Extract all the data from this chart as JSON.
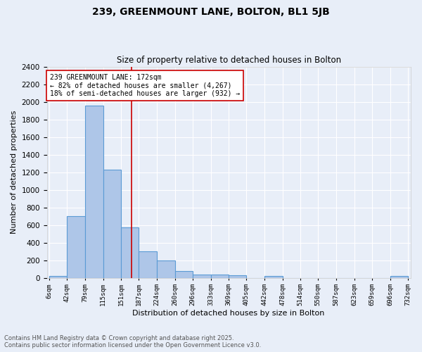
{
  "title": "239, GREENMOUNT LANE, BOLTON, BL1 5JB",
  "subtitle": "Size of property relative to detached houses in Bolton",
  "xlabel": "Distribution of detached houses by size in Bolton",
  "ylabel": "Number of detached properties",
  "bar_edges": [
    6,
    42,
    79,
    115,
    151,
    187,
    224,
    260,
    296,
    333,
    369,
    405,
    442,
    478,
    514,
    550,
    587,
    623,
    659,
    696,
    732
  ],
  "bar_heights": [
    20,
    700,
    1960,
    1230,
    570,
    300,
    200,
    80,
    40,
    35,
    30,
    0,
    20,
    0,
    0,
    0,
    0,
    0,
    0,
    20
  ],
  "bar_color": "#aec6e8",
  "bar_edge_color": "#5b9bd5",
  "vline_x": 172,
  "vline_color": "#cc0000",
  "annotation_text": "239 GREENMOUNT LANE: 172sqm\n← 82% of detached houses are smaller (4,267)\n18% of semi-detached houses are larger (932) →",
  "annotation_box_color": "#ffffff",
  "annotation_box_edge": "#cc0000",
  "ylim": [
    0,
    2400
  ],
  "yticks": [
    0,
    200,
    400,
    600,
    800,
    1000,
    1200,
    1400,
    1600,
    1800,
    2000,
    2200,
    2400
  ],
  "bg_color": "#e8eef8",
  "grid_color": "#ffffff",
  "footer_line1": "Contains HM Land Registry data © Crown copyright and database right 2025.",
  "footer_line2": "Contains public sector information licensed under the Open Government Licence v3.0."
}
